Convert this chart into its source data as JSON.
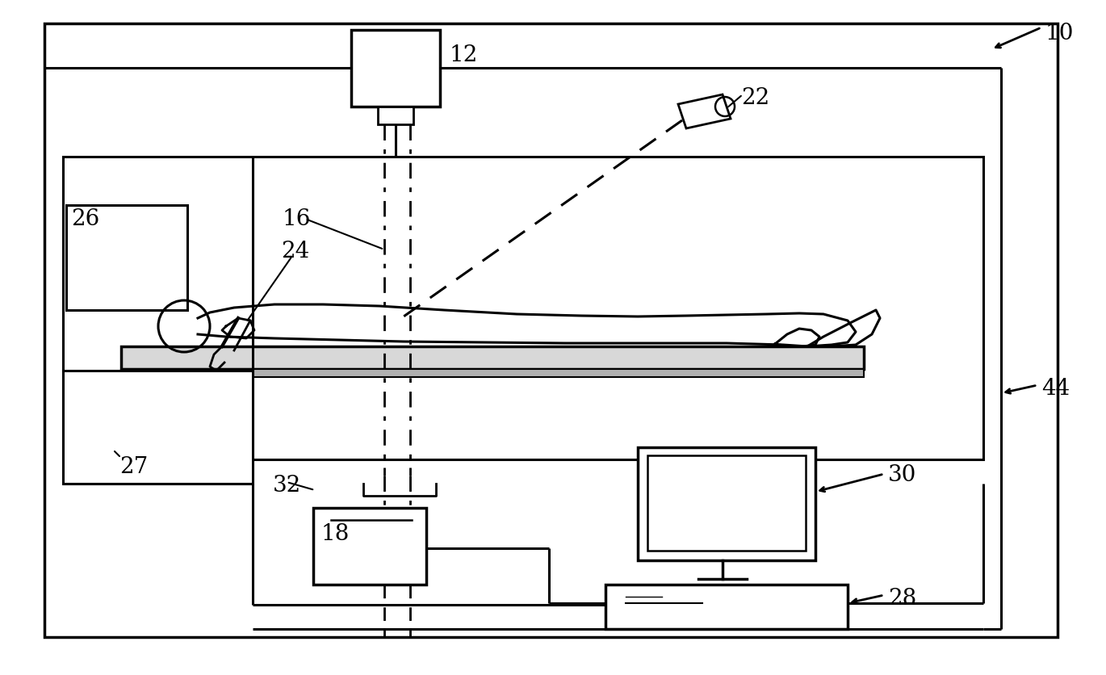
{
  "bg_color": "#ffffff",
  "line_color": "#000000",
  "fig_width": 13.7,
  "fig_height": 8.37
}
